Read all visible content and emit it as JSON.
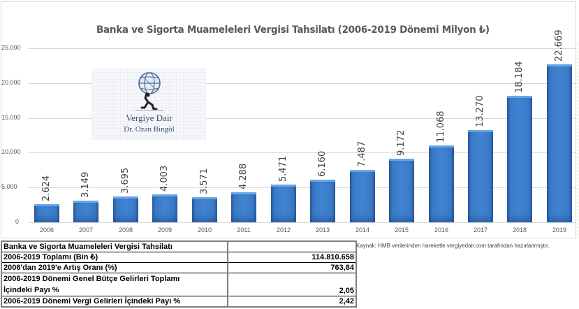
{
  "chart_data": {
    "type": "bar",
    "title": "Banka ve Sigorta Muameleleri Vergisi Tahsilatı (2006-2019 Dönemi Milyon ₺)",
    "xlabel": "",
    "ylabel": "",
    "categories": [
      "2006",
      "2007",
      "2008",
      "2009",
      "2010",
      "2011",
      "2012",
      "2013",
      "2014",
      "2015",
      "2016",
      "2017",
      "2018",
      "2019"
    ],
    "values": [
      2624,
      3149,
      3695,
      4003,
      3571,
      4288,
      5471,
      6160,
      7487,
      9172,
      11068,
      13270,
      18184,
      22669
    ],
    "value_labels": [
      "2.624",
      "3.149",
      "3.695",
      "4.003",
      "3.571",
      "4.288",
      "5.471",
      "6.160",
      "7.487",
      "9.172",
      "11.068",
      "13.270",
      "18.184",
      "22.669"
    ],
    "ylim": [
      0,
      25000
    ],
    "yticks": [
      0,
      5000,
      10000,
      15000,
      20000,
      25000
    ],
    "ytick_labels": [
      "0",
      "5.000",
      "10.000",
      "15.000",
      "20.000",
      "25.000"
    ],
    "grid": true,
    "legend": null,
    "bar_color": "#3f83d1"
  },
  "watermark": {
    "title": "Vergiye Dair",
    "subtitle": "Dr. Ozan Bingöl",
    "icon": "atlas-globe-icon"
  },
  "summary_table": {
    "rows": [
      {
        "label": "Banka ve Sigorta Muameleleri Vergisi Tahsilatı",
        "value": ""
      },
      {
        "label": "2006-2019 Toplamı (Bin ₺)",
        "value": "114.810.658"
      },
      {
        "label": "2006'dan 2019'e Artış Oranı (%)",
        "value": "763,84"
      },
      {
        "label": "2006-2019 Dönemi Genel Bütçe Gelirleri Toplamı",
        "label2": "İçindeki Payı %",
        "value": "2,05"
      },
      {
        "label": "2006-2019 Dönemi Vergi Gelirleri İçindeki Payı %",
        "value": "2,42"
      }
    ]
  },
  "source_note": "Kaynak: HMB verilerinden hareketle vergiyedair.com tarafından hazırlanmıştır."
}
